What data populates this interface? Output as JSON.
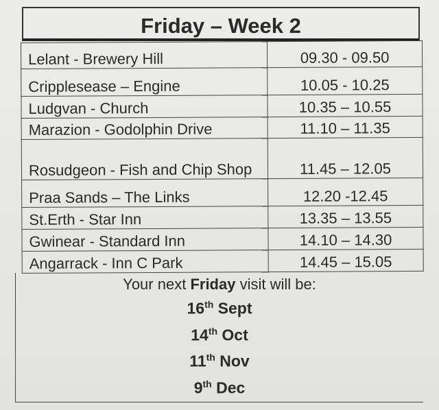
{
  "title": "Friday – Week 2",
  "rows": [
    {
      "stop": "Lelant - Brewery Hill",
      "time": "09.30 - 09.50"
    },
    {
      "stop": "Cripplesease – Engine",
      "time": "10.05 - 10.25"
    },
    {
      "stop": "Ludgvan - Church",
      "time": "10.35 – 10.55"
    },
    {
      "stop": "Marazion - Godolphin Drive",
      "time": "11.10 – 11.35"
    },
    {
      "stop": "Rosudgeon - Fish and Chip Shop",
      "time": "11.45 – 12.05"
    },
    {
      "stop": "Praa Sands – The Links",
      "time": "12.20 -12.45"
    },
    {
      "stop": "St.Erth - Star Inn",
      "time": "13.35 – 13.55"
    },
    {
      "stop": "Gwinear - Standard Inn",
      "time": "14.10 – 14.30"
    },
    {
      "stop": "Angarrack - Inn C Park",
      "time": "14.45 – 15.05"
    }
  ],
  "footer": {
    "intro_before": "Your next ",
    "intro_bold": "Friday",
    "intro_after": " visit will be:",
    "dates": [
      {
        "day": "16",
        "suffix": "th",
        "month": "Sept"
      },
      {
        "day": "14",
        "suffix": "th",
        "month": "Oct"
      },
      {
        "day": "11",
        "suffix": "th",
        "month": "Nov"
      },
      {
        "day": "9",
        "suffix": "th",
        "month": "Dec"
      }
    ]
  }
}
